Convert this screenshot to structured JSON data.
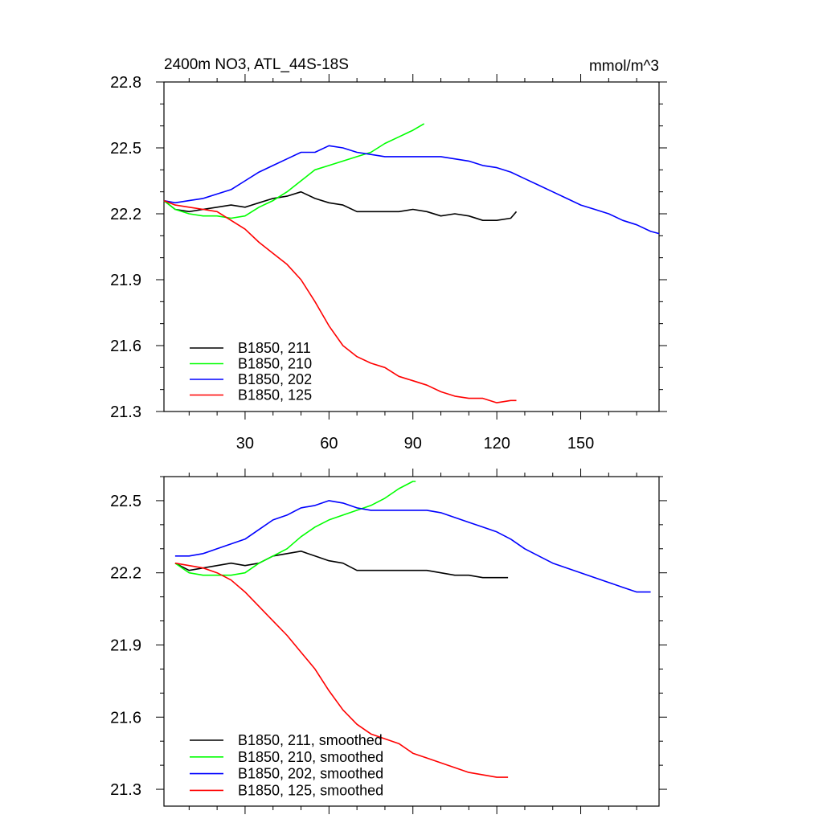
{
  "chart_data": [
    {
      "type": "line",
      "title": "2400m NO3, ATL_44S-18S",
      "units": "mmol/m^3",
      "xlabel": "",
      "ylabel": "",
      "xlim": [
        1,
        178
      ],
      "ylim": [
        21.3,
        22.8
      ],
      "xticks": [
        30,
        60,
        90,
        120,
        150
      ],
      "yticks": [
        21.3,
        21.6,
        21.9,
        22.2,
        22.5,
        22.8
      ],
      "legend_position": "bottom-left",
      "grid": false,
      "series": [
        {
          "name": "B1850, 211",
          "color": "#000000",
          "x": [
            1,
            5,
            10,
            15,
            20,
            25,
            30,
            35,
            40,
            45,
            50,
            55,
            60,
            65,
            70,
            75,
            80,
            85,
            90,
            95,
            100,
            105,
            110,
            115,
            120,
            125,
            127
          ],
          "y": [
            22.26,
            22.22,
            22.21,
            22.22,
            22.23,
            22.24,
            22.23,
            22.25,
            22.27,
            22.28,
            22.3,
            22.27,
            22.25,
            22.24,
            22.21,
            22.21,
            22.21,
            22.21,
            22.22,
            22.21,
            22.19,
            22.2,
            22.19,
            22.17,
            22.17,
            22.18,
            22.21
          ]
        },
        {
          "name": "B1850, 210",
          "color": "#00ff00",
          "x": [
            1,
            5,
            10,
            15,
            20,
            25,
            30,
            35,
            40,
            45,
            50,
            55,
            60,
            65,
            70,
            75,
            80,
            85,
            90,
            94
          ],
          "y": [
            22.26,
            22.22,
            22.2,
            22.19,
            22.19,
            22.18,
            22.19,
            22.23,
            22.26,
            22.3,
            22.35,
            22.4,
            22.42,
            22.44,
            22.46,
            22.48,
            22.52,
            22.55,
            22.58,
            22.61
          ]
        },
        {
          "name": "B1850, 202",
          "color": "#0000ff",
          "x": [
            1,
            5,
            10,
            15,
            20,
            25,
            30,
            35,
            40,
            45,
            50,
            55,
            60,
            65,
            70,
            75,
            80,
            85,
            90,
            95,
            100,
            105,
            110,
            115,
            120,
            125,
            130,
            135,
            140,
            145,
            150,
            155,
            160,
            165,
            170,
            175,
            178
          ],
          "y": [
            22.26,
            22.25,
            22.26,
            22.27,
            22.29,
            22.31,
            22.35,
            22.39,
            22.42,
            22.45,
            22.48,
            22.48,
            22.51,
            22.5,
            22.48,
            22.47,
            22.46,
            22.46,
            22.46,
            22.46,
            22.46,
            22.45,
            22.44,
            22.42,
            22.41,
            22.39,
            22.36,
            22.33,
            22.3,
            22.27,
            22.24,
            22.22,
            22.2,
            22.17,
            22.15,
            22.12,
            22.11
          ]
        },
        {
          "name": "B1850, 125",
          "color": "#ff0000",
          "x": [
            1,
            5,
            10,
            15,
            20,
            25,
            30,
            35,
            40,
            45,
            50,
            55,
            60,
            65,
            70,
            75,
            80,
            85,
            90,
            95,
            100,
            105,
            110,
            115,
            120,
            125,
            127
          ],
          "y": [
            22.26,
            22.24,
            22.23,
            22.22,
            22.21,
            22.17,
            22.13,
            22.07,
            22.02,
            21.97,
            21.9,
            21.8,
            21.69,
            21.6,
            21.55,
            21.52,
            21.5,
            21.46,
            21.44,
            21.42,
            21.39,
            21.37,
            21.36,
            21.36,
            21.34,
            21.35,
            21.35
          ]
        }
      ]
    },
    {
      "type": "line",
      "title": "",
      "xlabel": "",
      "ylabel": "",
      "xlim": [
        1,
        178
      ],
      "ylim": [
        21.23,
        22.6
      ],
      "xticks": [
        30,
        60,
        90,
        120,
        150
      ],
      "yticks": [
        21.3,
        21.6,
        21.9,
        22.2,
        22.5
      ],
      "legend_position": "bottom-left",
      "grid": false,
      "series": [
        {
          "name": "B1850, 211, smoothed",
          "color": "#000000",
          "x": [
            5,
            10,
            15,
            20,
            25,
            30,
            35,
            40,
            45,
            50,
            55,
            60,
            65,
            70,
            75,
            80,
            85,
            90,
            95,
            100,
            105,
            110,
            115,
            120,
            124
          ],
          "y": [
            22.24,
            22.21,
            22.22,
            22.23,
            22.24,
            22.23,
            22.24,
            22.27,
            22.28,
            22.29,
            22.27,
            22.25,
            22.24,
            22.21,
            22.21,
            22.21,
            22.21,
            22.21,
            22.21,
            22.2,
            22.19,
            22.19,
            22.18,
            22.18,
            22.18
          ]
        },
        {
          "name": "B1850, 210, smoothed",
          "color": "#00ff00",
          "x": [
            5,
            10,
            15,
            20,
            25,
            30,
            35,
            40,
            45,
            50,
            55,
            60,
            65,
            70,
            75,
            80,
            85,
            90,
            91
          ],
          "y": [
            22.24,
            22.2,
            22.19,
            22.19,
            22.19,
            22.2,
            22.24,
            22.27,
            22.3,
            22.35,
            22.39,
            22.42,
            22.44,
            22.46,
            22.48,
            22.51,
            22.55,
            22.58,
            22.58
          ]
        },
        {
          "name": "B1850, 202, smoothed",
          "color": "#0000ff",
          "x": [
            5,
            10,
            15,
            20,
            25,
            30,
            35,
            40,
            45,
            50,
            55,
            60,
            65,
            70,
            75,
            80,
            85,
            90,
            95,
            100,
            105,
            110,
            115,
            120,
            125,
            130,
            135,
            140,
            145,
            150,
            155,
            160,
            165,
            170,
            175
          ],
          "y": [
            22.27,
            22.27,
            22.28,
            22.3,
            22.32,
            22.34,
            22.38,
            22.42,
            22.44,
            22.47,
            22.48,
            22.5,
            22.49,
            22.47,
            22.46,
            22.46,
            22.46,
            22.46,
            22.46,
            22.45,
            22.43,
            22.41,
            22.39,
            22.37,
            22.34,
            22.3,
            22.27,
            22.24,
            22.22,
            22.2,
            22.18,
            22.16,
            22.14,
            22.12,
            22.12
          ]
        },
        {
          "name": "B1850, 125, smoothed",
          "color": "#ff0000",
          "x": [
            5,
            10,
            15,
            20,
            25,
            30,
            35,
            40,
            45,
            50,
            55,
            60,
            65,
            70,
            75,
            80,
            85,
            90,
            95,
            100,
            105,
            110,
            115,
            120,
            124
          ],
          "y": [
            22.24,
            22.23,
            22.22,
            22.2,
            22.17,
            22.12,
            22.06,
            22.0,
            21.94,
            21.87,
            21.8,
            21.71,
            21.63,
            21.57,
            21.53,
            21.51,
            21.49,
            21.45,
            21.43,
            21.41,
            21.39,
            21.37,
            21.36,
            21.35,
            21.35
          ]
        }
      ]
    }
  ]
}
